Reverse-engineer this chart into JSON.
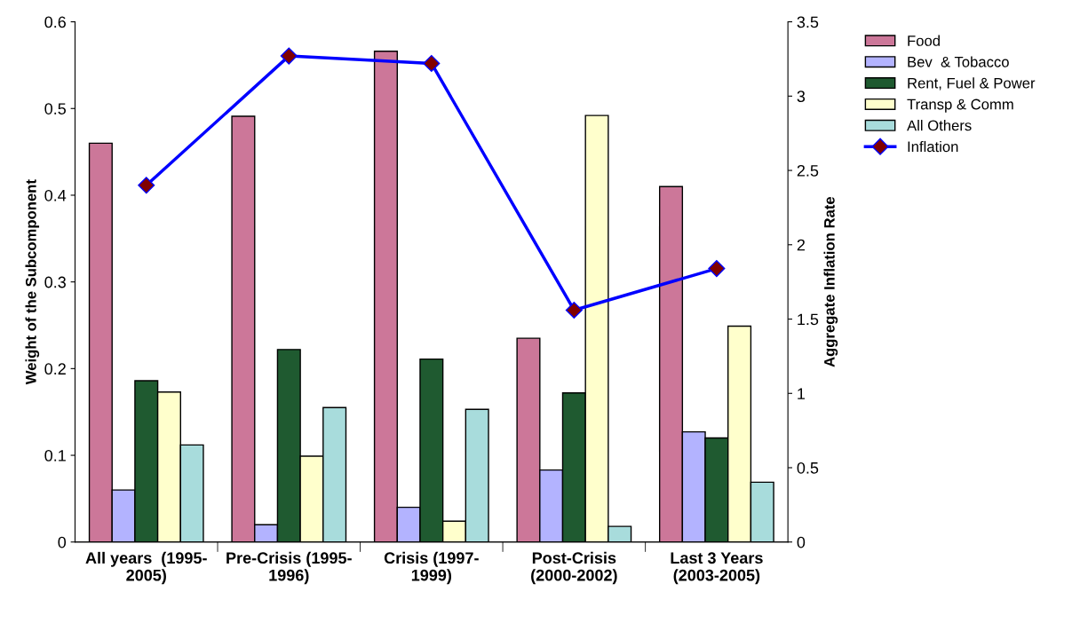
{
  "chart_data": {
    "type": "bar",
    "categories": [
      "All years  (1995-\n2005)",
      "Pre-Crisis (1995-\n1996)",
      "Crisis (1997-\n1999)",
      "Post-Crisis\n(2000-2002)",
      "Last 3 Years\n(2003-2005)"
    ],
    "series": [
      {
        "name": "Food",
        "color": "#cc7799",
        "values": [
          0.46,
          0.491,
          0.566,
          0.235,
          0.41
        ]
      },
      {
        "name": "Bev  & Tobacco",
        "color": "#b3b3ff",
        "values": [
          0.06,
          0.02,
          0.04,
          0.083,
          0.127
        ]
      },
      {
        "name": "Rent, Fuel & Power",
        "color": "#1f5a30",
        "values": [
          0.186,
          0.222,
          0.211,
          0.172,
          0.12
        ]
      },
      {
        "name": "Transp & Comm",
        "color": "#ffffcc",
        "values": [
          0.173,
          0.099,
          0.024,
          0.492,
          0.249
        ]
      },
      {
        "name": "All Others",
        "color": "#a8dcdc",
        "values": [
          0.112,
          0.155,
          0.153,
          0.018,
          0.069
        ]
      },
      {
        "name": "Inflation",
        "type": "line",
        "axis": "y2",
        "color": "#0000ff",
        "marker": "diamond",
        "values": [
          2.4,
          3.27,
          3.22,
          1.56,
          1.84
        ]
      }
    ],
    "ylabel": "Weight of the Subcomponent",
    "y2label": "Aggregate Inflation Rate",
    "ylim": [
      0,
      0.6
    ],
    "yticks": [
      0,
      0.1,
      0.2,
      0.3,
      0.4,
      0.5,
      0.6
    ],
    "y2lim": [
      0,
      3.5
    ],
    "y2ticks": [
      0,
      0.5,
      1,
      1.5,
      2,
      2.5,
      3,
      3.5
    ],
    "grid": false,
    "legend": "right"
  }
}
